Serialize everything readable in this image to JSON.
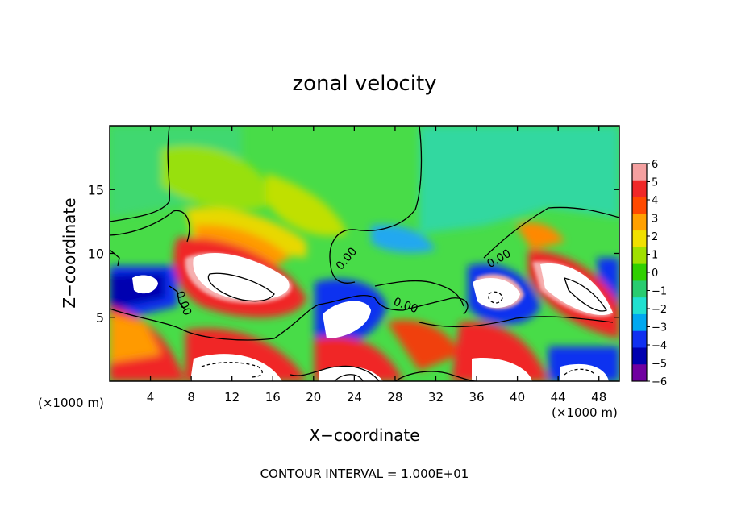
{
  "chart_data": {
    "type": "heatmap",
    "title": "zonal velocity",
    "xlabel": "X−coordinate",
    "ylabel": "Z−coordinate",
    "x_unit_left": "(×1000 m)",
    "x_unit_right": "(×1000 m)",
    "footer": "CONTOUR INTERVAL = 1.000E+01",
    "xlim": [
      0,
      50
    ],
    "ylim": [
      0,
      20
    ],
    "x_ticks": [
      4,
      8,
      12,
      16,
      20,
      24,
      28,
      32,
      36,
      40,
      44,
      48
    ],
    "x_tick_labels": [
      "4",
      "8",
      "12",
      "16",
      "20",
      "24",
      "28",
      "32",
      "36",
      "40",
      "44",
      "48"
    ],
    "y_ticks": [
      5,
      10,
      15
    ],
    "y_tick_labels": [
      "5",
      "10",
      "15"
    ],
    "colorbar": {
      "ticks": [
        6,
        5,
        4,
        3,
        2,
        1,
        0,
        -1,
        -2,
        -3,
        -4,
        -5,
        -6
      ],
      "tick_labels": [
        "6",
        "5",
        "4",
        "3",
        "2",
        "1",
        "0",
        "−1",
        "−2",
        "−3",
        "−4",
        "−5",
        "−6"
      ],
      "colors": [
        "#f4a0a0",
        "#f02828",
        "#ff4a00",
        "#ffa000",
        "#f0e000",
        "#a0e000",
        "#30d000",
        "#28cc70",
        "#20e0d0",
        "#00a8f0",
        "#1030f0",
        "#0000b0",
        "#7000a0"
      ]
    },
    "contour_labels": [
      "0.00",
      "0.00",
      "0.00",
      "0.00"
    ],
    "contour_interval": 10
  }
}
